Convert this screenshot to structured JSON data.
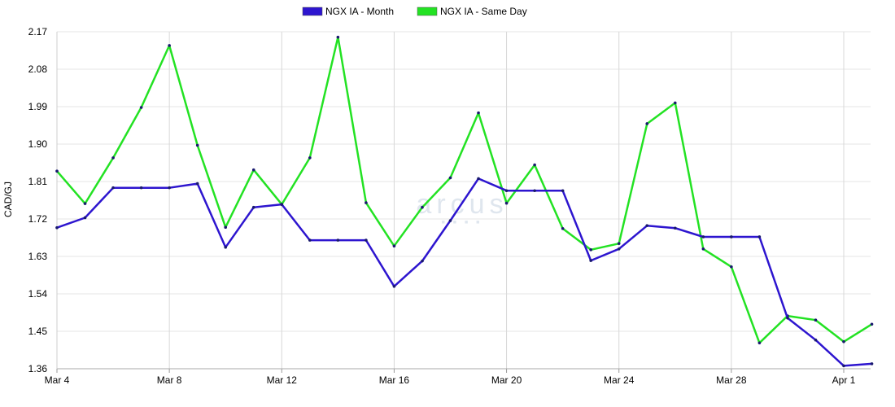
{
  "chart_data": {
    "type": "line",
    "ylabel": "CAD/GJ",
    "xlabel": "",
    "title": "",
    "ylim": [
      1.36,
      2.17
    ],
    "yticks": [
      "1.36",
      "1.45",
      "1.54",
      "1.63",
      "1.72",
      "1.81",
      "1.90",
      "1.99",
      "2.08",
      "2.17"
    ],
    "xticks": [
      "Mar 4",
      "Mar 8",
      "Mar 12",
      "Mar 16",
      "Mar 20",
      "Mar 24",
      "Mar 28",
      "Apr 1"
    ],
    "x": [
      "Mar 4",
      "Mar 5",
      "Mar 6",
      "Mar 7",
      "Mar 8",
      "Mar 9",
      "Mar 10",
      "Mar 11",
      "Mar 12",
      "Mar 13",
      "Mar 14",
      "Mar 15",
      "Mar 16",
      "Mar 17",
      "Mar 18",
      "Mar 19",
      "Mar 20",
      "Mar 21",
      "Mar 22",
      "Mar 23",
      "Mar 24",
      "Mar 25",
      "Mar 26",
      "Mar 27",
      "Mar 28",
      "Mar 29",
      "Mar 30",
      "Mar 31",
      "Apr 1",
      "Apr 2"
    ],
    "grid": true,
    "legend_position": "top-center",
    "series": [
      {
        "name": "NGX IA - Month",
        "color": "#2d15cf",
        "values": [
          1.699,
          1.723,
          1.795,
          1.795,
          1.795,
          1.805,
          1.652,
          1.748,
          1.755,
          1.669,
          1.669,
          1.669,
          1.558,
          1.619,
          1.716,
          1.817,
          1.788,
          1.788,
          1.788,
          1.62,
          1.648,
          1.704,
          1.698,
          1.677,
          1.677,
          1.677,
          1.482,
          1.429,
          1.367,
          1.372
        ]
      },
      {
        "name": "NGX IA - Same Day",
        "color": "#23e223",
        "values": [
          1.835,
          1.757,
          1.867,
          1.988,
          2.137,
          1.897,
          1.7,
          1.838,
          1.755,
          1.867,
          2.157,
          1.759,
          1.655,
          1.748,
          1.819,
          1.975,
          1.758,
          1.85,
          1.697,
          1.646,
          1.661,
          1.949,
          1.999,
          1.648,
          1.605,
          1.422,
          1.487,
          1.477,
          1.425,
          1.467
        ]
      }
    ]
  },
  "watermark": {
    "text": "arcus",
    "subtext": "■ ■ ■ ■"
  }
}
